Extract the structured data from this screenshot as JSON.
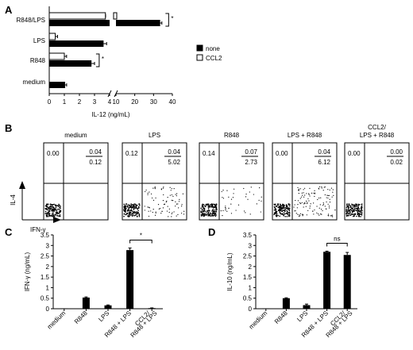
{
  "chart_data": [
    {
      "panel": "A",
      "type": "bar",
      "orientation": "horizontal",
      "categories": [
        "R848/LPS",
        "LPS",
        "R848",
        "medium"
      ],
      "series": [
        {
          "name": "none",
          "color": "#000000",
          "values": [
            33.5,
            3.6,
            2.8,
            1.05
          ],
          "errors": [
            0.5,
            0.15,
            0.15,
            0.05
          ]
        },
        {
          "name": "CCL2",
          "color": "#ffffff",
          "values": [
            4.4,
            0.4,
            1.0,
            0.05
          ],
          "errors": [
            0.1,
            0.15,
            0.15,
            0.0
          ]
        }
      ],
      "xlabel": "IL-12 (ng/mL)",
      "xticks": [
        "0",
        "1",
        "2",
        "3",
        "4",
        "10",
        "20",
        "30",
        "40"
      ],
      "axis_break": [
        4,
        10
      ],
      "significance": [
        {
          "category": "R848/LPS",
          "label": "*"
        },
        {
          "category": "R848",
          "label": "*"
        }
      ],
      "legend_position": "right"
    },
    {
      "panel": "B",
      "type": "scatter",
      "panels": [
        {
          "title": "medium",
          "ul": "0.00",
          "ur_top": "",
          "ur_bottom": "",
          "density": 0
        },
        {
          "title": "LPS",
          "ul": "0.12",
          "ur_top": "0.04",
          "ur_bottom": "5.02",
          "density": 2
        },
        {
          "title": "R848",
          "ul": "0.14",
          "ur_top": "0.07",
          "ur_bottom": "2.73",
          "density": 1
        },
        {
          "title": "LPS + R848",
          "ul": "0.00",
          "ur_top": "0.04",
          "ur_bottom": "6.12",
          "density": 3
        },
        {
          "title": "CCL2/\nLPS + R848",
          "ul": "0.00",
          "ur_top": "0.00",
          "ur_bottom": "0.02",
          "density": 0
        }
      ],
      "first_ur_top": "0.04",
      "first_ur_bottom": "0.12",
      "ylabel": "IL-4",
      "xlabel": "IFN-γ"
    },
    {
      "panel": "C",
      "type": "bar",
      "categories": [
        "medium",
        "R848",
        "LPS",
        "R848 + LPS",
        "CCL2/\nR848 + LPS"
      ],
      "values": [
        0.02,
        0.53,
        0.16,
        2.78,
        0.03
      ],
      "errors": [
        0.0,
        0.03,
        0.02,
        0.1,
        0.01
      ],
      "ylabel": "IFN-γ (ng/mL)",
      "ylim": [
        0,
        3.5
      ],
      "yticks": [
        "0",
        "0.5",
        "1",
        "1.5",
        "2",
        "2.5",
        "3",
        "3.5"
      ],
      "significance": {
        "between": [
          3,
          4
        ],
        "label": "*"
      }
    },
    {
      "panel": "D",
      "type": "bar",
      "categories": [
        "medium",
        "R848",
        "LPS",
        "R848 + LPS",
        "CCL2/\nR848 + LPS"
      ],
      "values": [
        0.02,
        0.5,
        0.17,
        2.7,
        2.55
      ],
      "errors": [
        0.0,
        0.02,
        0.05,
        0.03,
        0.12
      ],
      "ylabel": "IL-10 (ng/mL)",
      "ylim": [
        0,
        3.5
      ],
      "yticks": [
        "0",
        "0.5",
        "1",
        "1.5",
        "2",
        "2.5",
        "3",
        "3.5"
      ],
      "significance": {
        "between": [
          3,
          4
        ],
        "label": "ns"
      }
    }
  ],
  "panel_labels": [
    "A",
    "B",
    "C",
    "D"
  ]
}
